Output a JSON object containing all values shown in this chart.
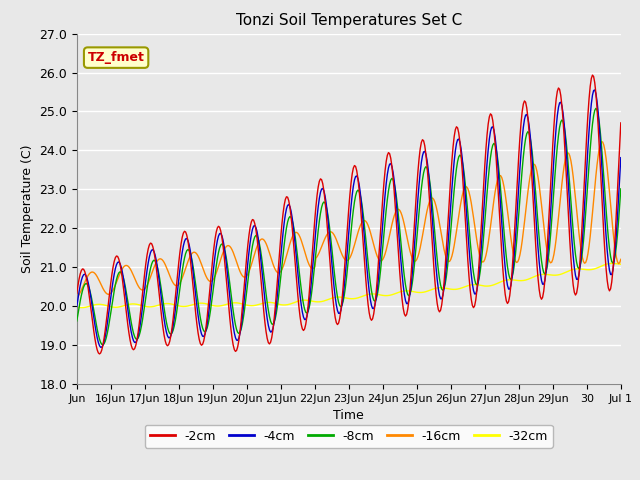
{
  "title": "Tonzi Soil Temperatures Set C",
  "xlabel": "Time",
  "ylabel": "Soil Temperature (C)",
  "annotation_label": "TZ_fmet",
  "annotation_box_color": "#ffffcc",
  "annotation_border_color": "#999900",
  "annotation_text_color": "#cc0000",
  "ylim": [
    18.0,
    27.0
  ],
  "yticks": [
    18.0,
    19.0,
    20.0,
    21.0,
    22.0,
    23.0,
    24.0,
    25.0,
    26.0,
    27.0
  ],
  "xtick_labels": [
    "Jun",
    "16Jun",
    "17Jun",
    "18Jun",
    "19Jun",
    "20Jun",
    "21Jun",
    "22Jun",
    "23Jun",
    "24Jun",
    "25Jun",
    "26Jun",
    "27Jun",
    "28Jun",
    "29Jun",
    "30",
    "Jul 1"
  ],
  "background_color": "#e8e8e8",
  "plot_bg_color": "#e8e8e8",
  "grid_color": "#ffffff",
  "series": [
    {
      "label": "-2cm",
      "color": "#dd0000"
    },
    {
      "label": "-4cm",
      "color": "#0000cc"
    },
    {
      "label": "-8cm",
      "color": "#00aa00"
    },
    {
      "label": "-16cm",
      "color": "#ff8800"
    },
    {
      "label": "-32cm",
      "color": "#ffff00"
    }
  ]
}
